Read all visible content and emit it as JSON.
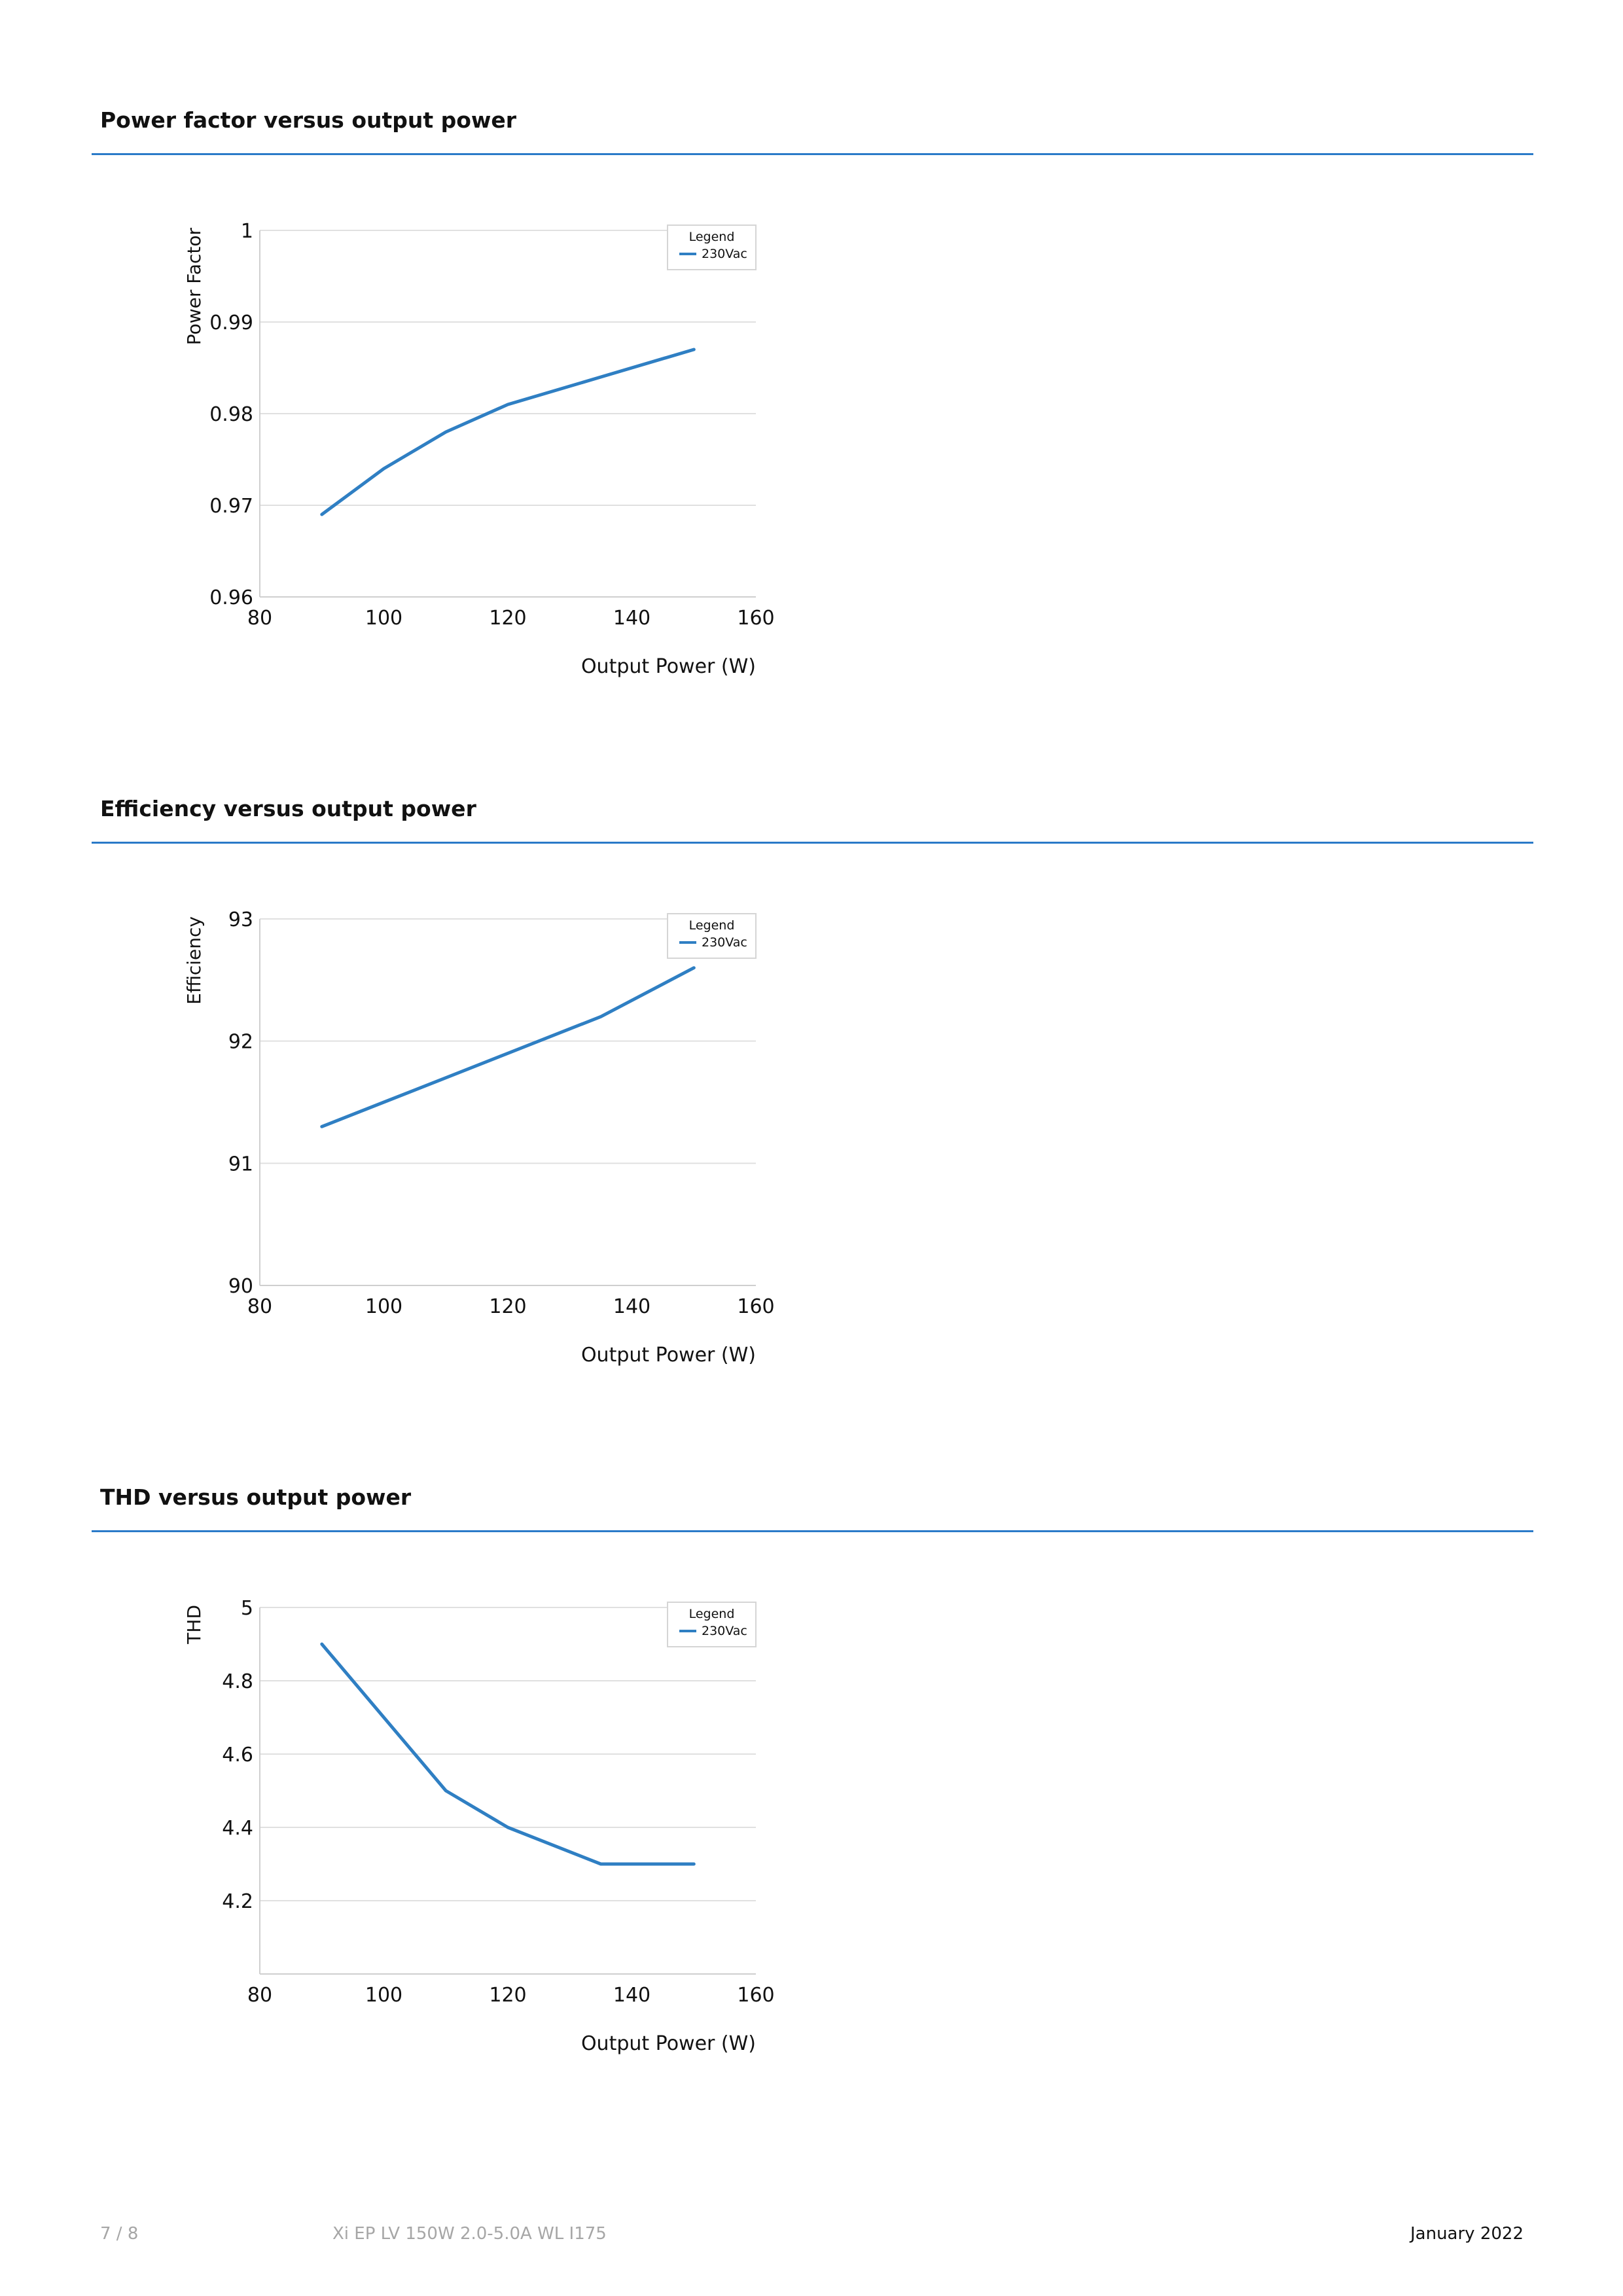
{
  "sections": [
    {
      "title": "Power factor versus output power"
    },
    {
      "title": "Efficiency versus output power"
    },
    {
      "title": "THD versus output power"
    }
  ],
  "colors": {
    "accent": "#2a7ac8",
    "line": "#2f7fc3",
    "grid": "#e0e0e0",
    "axis": "#cfcfcf",
    "footer_muted": "#a6a6a6"
  },
  "footer": {
    "page": "7 / 8",
    "product": "Xi EP LV 150W 2.0-5.0A WL I175",
    "date": "January 2022"
  },
  "chart_data": [
    {
      "type": "line",
      "title": "",
      "xlabel": "Output Power (W)",
      "ylabel": "Power Factor",
      "xlim": [
        80,
        160
      ],
      "ylim": [
        0.96,
        1
      ],
      "xticks": [
        "80",
        "100",
        "120",
        "140",
        "160"
      ],
      "yticks": [
        "0.96",
        "0.97",
        "0.98",
        "0.99",
        "1"
      ],
      "grid": true,
      "legend": {
        "title": "Legend",
        "position": "top-right"
      },
      "series": [
        {
          "name": "230Vac",
          "x": [
            90,
            100,
            110,
            120,
            135,
            150
          ],
          "y": [
            0.969,
            0.974,
            0.978,
            0.981,
            0.984,
            0.987
          ]
        }
      ]
    },
    {
      "type": "line",
      "title": "",
      "xlabel": "Output Power (W)",
      "ylabel": "Efficiency",
      "xlim": [
        80,
        160
      ],
      "ylim": [
        90,
        93
      ],
      "xticks": [
        "80",
        "100",
        "120",
        "140",
        "160"
      ],
      "yticks": [
        "90",
        "91",
        "92",
        "93"
      ],
      "grid": true,
      "legend": {
        "title": "Legend",
        "position": "top-right"
      },
      "series": [
        {
          "name": "230Vac",
          "x": [
            90,
            100,
            110,
            120,
            135,
            150
          ],
          "y": [
            91.3,
            91.5,
            91.7,
            91.9,
            92.2,
            92.6
          ]
        }
      ]
    },
    {
      "type": "line",
      "title": "",
      "xlabel": "Output Power (W)",
      "ylabel": "THD",
      "xlim": [
        80,
        160
      ],
      "ylim": [
        4,
        5
      ],
      "xticks": [
        "80",
        "100",
        "120",
        "140",
        "160"
      ],
      "yticks": [
        "",
        "4.2",
        "4.4",
        "4.6",
        "4.8",
        "5"
      ],
      "grid": true,
      "legend": {
        "title": "Legend",
        "position": "top-right"
      },
      "series": [
        {
          "name": "230Vac",
          "x": [
            90,
            100,
            110,
            120,
            135,
            150
          ],
          "y": [
            4.9,
            4.7,
            4.5,
            4.4,
            4.3,
            4.3
          ]
        }
      ]
    }
  ]
}
